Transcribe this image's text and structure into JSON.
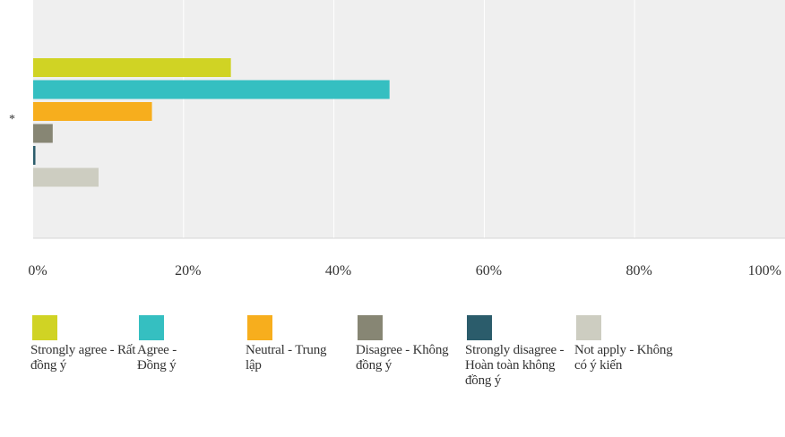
{
  "chart_data": {
    "type": "bar",
    "orientation": "horizontal",
    "categories": [
      "*"
    ],
    "series": [
      {
        "name": "Strongly agree - Rất đồng ý",
        "values": [
          26.3
        ],
        "color": "#d0d324"
      },
      {
        "name": "Agree - Đồng ý",
        "values": [
          47.4
        ],
        "color": "#35bfc1"
      },
      {
        "name": "Neutral - Trung lập",
        "values": [
          15.8
        ],
        "color": "#f7ae1d"
      },
      {
        "name": "Disagree - Không đồng ý",
        "values": [
          2.6
        ],
        "color": "#878674"
      },
      {
        "name": "Strongly disagree - Hoàn toàn không đồng ý",
        "values": [
          0.3
        ],
        "color": "#2b5c6b"
      },
      {
        "name": "Not apply - Không có ý kiến",
        "values": [
          8.7
        ],
        "color": "#cdcdc1"
      }
    ],
    "xlim": [
      0,
      100
    ],
    "ticks": [
      "0%",
      "20%",
      "40%",
      "60%",
      "80%",
      "100%"
    ],
    "grid": true,
    "legend_position": "bottom"
  },
  "legend": [
    {
      "label": "Strongly agree - Rất đồng ý",
      "color": "#d0d324"
    },
    {
      "label": "Agree - Đồng ý",
      "color": "#35bfc1"
    },
    {
      "label": "Neutral - Trung lập",
      "color": "#f7ae1d"
    },
    {
      "label": "Disagree - Không đồng ý",
      "color": "#878674"
    },
    {
      "label": "Strongly disagree - Hoàn toàn không đồng ý",
      "color": "#2b5c6b"
    },
    {
      "label": "Not apply - Không có ý kiến",
      "color": "#cdcdc1"
    }
  ]
}
